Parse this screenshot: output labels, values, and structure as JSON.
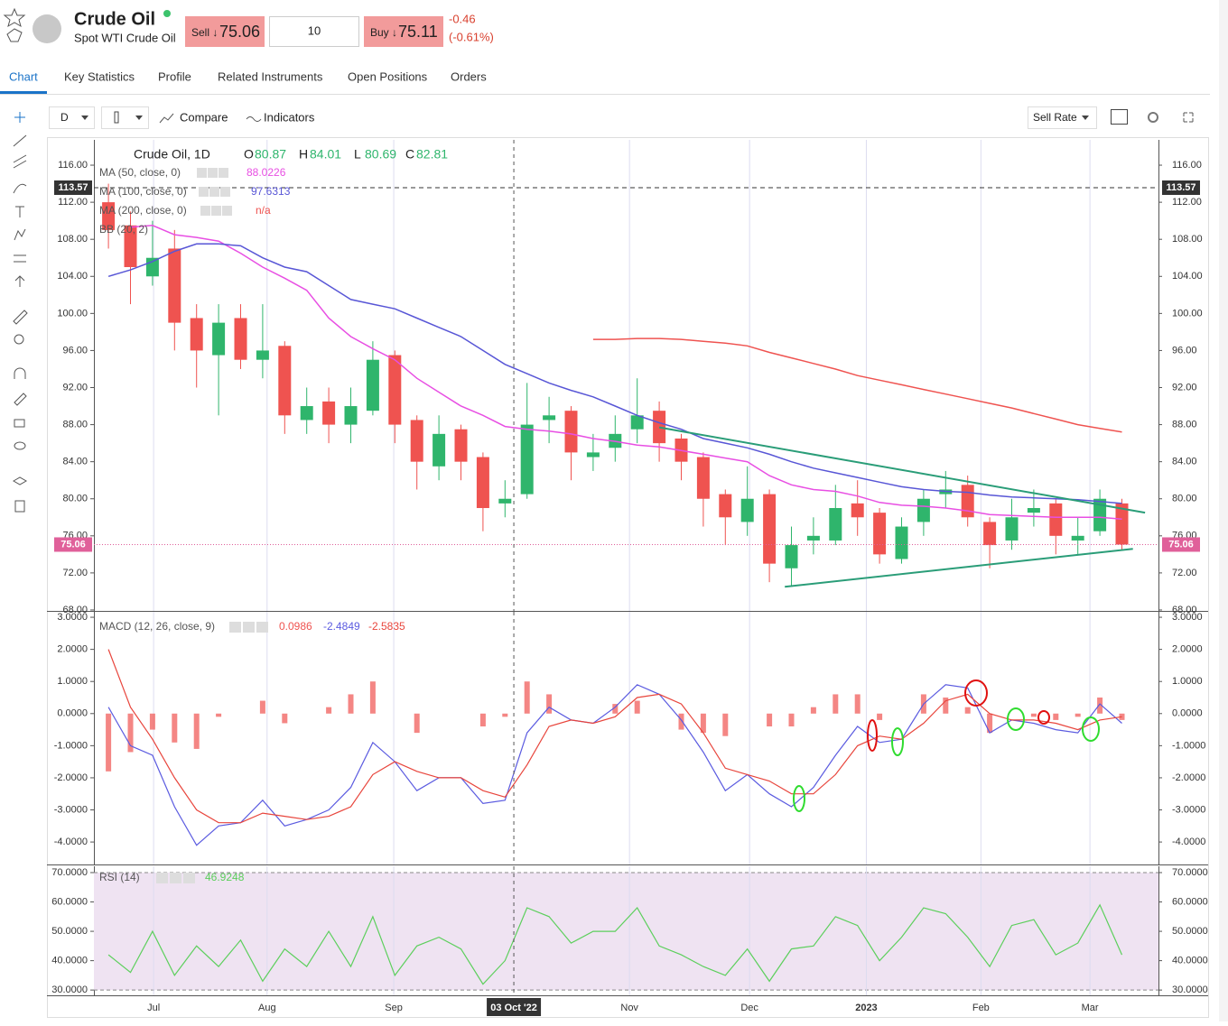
{
  "header": {
    "title": "Crude Oil",
    "subtitle": "Spot WTI Crude Oil",
    "sell_label": "Sell ↓",
    "sell_price": 75.06,
    "quantity": 10,
    "buy_label": "Buy ↓",
    "buy_price": 75.11,
    "change": -0.46,
    "change_pct": "(-0.61%)"
  },
  "tabs": [
    "Chart",
    "Key Statistics",
    "Profile",
    "Related Instruments",
    "Open Positions",
    "Orders"
  ],
  "toolbar": {
    "interval": "D",
    "compare": "Compare",
    "indicators": "Indicators",
    "rate": "Sell Rate"
  },
  "chart_data": [
    {
      "type": "candlestick",
      "title": "Crude Oil, 1D",
      "ohlc_labels": [
        "O",
        "H",
        "L",
        "C"
      ],
      "ohlc": [
        80.87,
        84.01,
        80.69,
        82.81
      ],
      "up_color": "#2fb56c",
      "down_color": "#ef5350",
      "open": [
        112,
        109.5,
        104,
        107,
        99.5,
        95.5,
        99.5,
        95,
        96.5,
        88.5,
        90.5,
        88,
        89.5,
        95.5,
        88.5,
        83.5,
        87.5,
        84.5,
        79.5,
        80.5,
        88.5,
        89.5,
        84.5,
        85.5,
        87.5,
        89.5,
        86.5,
        84.5,
        80.5,
        77.5,
        80.5,
        72.5,
        75.5,
        75.5,
        79.5,
        78.5,
        73.5,
        77.5,
        80.5,
        81.5,
        77.5,
        75.5,
        78.5,
        79.5,
        75.5,
        76.5,
        79.5
      ],
      "high": [
        114,
        111,
        110,
        109,
        101,
        101,
        101,
        101,
        97,
        92,
        92,
        92,
        97,
        96,
        89,
        89,
        88,
        85,
        82,
        92.5,
        91,
        90,
        87,
        89,
        93,
        90.5,
        87,
        85,
        81,
        83.5,
        81,
        77,
        78,
        81.5,
        82,
        79,
        78,
        81,
        83,
        82.5,
        78,
        80,
        81,
        80,
        78,
        81,
        80
      ],
      "low": [
        107,
        101,
        103,
        96,
        92,
        89,
        94,
        93,
        87,
        87,
        86,
        86,
        89,
        86,
        81,
        82,
        82,
        76.5,
        78,
        80,
        86,
        82,
        83,
        84,
        86,
        84,
        82,
        77,
        75,
        76,
        71,
        70.5,
        74,
        75,
        76,
        73,
        73,
        76,
        79,
        77,
        72.5,
        74.5,
        77,
        74,
        74,
        76,
        74.5
      ],
      "close": [
        109,
        105,
        106,
        99,
        96,
        99,
        95,
        96,
        89,
        90,
        88,
        90,
        95,
        88,
        84,
        87,
        84,
        79,
        80,
        88,
        89,
        85,
        85,
        87,
        89,
        86,
        84,
        80,
        78,
        80,
        73,
        75,
        76,
        79,
        78,
        74,
        77,
        80,
        81,
        78,
        75,
        78,
        79,
        76,
        76,
        80,
        75.06
      ],
      "series": [
        {
          "name": "MA (50, close, 0)",
          "value": 88.0226,
          "color": "#e84fe3",
          "values": [
            null,
            109.3,
            109.5,
            108.5,
            108.2,
            107.8,
            106.5,
            105,
            103.8,
            102.5,
            99.5,
            97.5,
            96.2,
            95,
            93,
            91.5,
            90,
            89,
            87.8,
            87.5,
            87.3,
            87,
            86.5,
            86.2,
            85.8,
            85.6,
            85.2,
            84.8,
            84.4,
            84,
            82.5,
            81.5,
            81,
            80.8,
            80.3,
            79.6,
            79.3,
            79.2,
            79,
            78.7,
            78.3,
            78.2,
            78.1,
            78,
            78,
            78,
            77.8
          ]
        },
        {
          "name": "MA (100, close, 0)",
          "value": 97.6313,
          "color": "#5856d6",
          "values": [
            104,
            104.7,
            105.6,
            106.7,
            107.5,
            107.5,
            107.3,
            106,
            105,
            104.5,
            103,
            101.5,
            101,
            100.5,
            99.5,
            98.5,
            97.5,
            96,
            94.5,
            93.5,
            92.5,
            91.7,
            91,
            90,
            89,
            88.2,
            87.5,
            86.5,
            86,
            85.5,
            84.8,
            84,
            83.3,
            82.8,
            82.3,
            81.8,
            81.3,
            81,
            80.8,
            80.7,
            80.4,
            80.2,
            80.1,
            80,
            79.9,
            79.7,
            79.5
          ]
        },
        {
          "name": "MA (200, close, 0)",
          "value": "n/a",
          "color": "#ef5350",
          "values": [
            null,
            null,
            null,
            null,
            null,
            null,
            null,
            null,
            null,
            null,
            null,
            null,
            null,
            null,
            null,
            null,
            null,
            null,
            null,
            null,
            null,
            null,
            97.2,
            97.2,
            97.3,
            97.3,
            97.2,
            97,
            96.8,
            96.5,
            95.8,
            95.2,
            94.6,
            94,
            93.3,
            92.8,
            92.3,
            91.8,
            91.3,
            90.8,
            90.3,
            89.8,
            89.2,
            88.6,
            88,
            87.6,
            87.2
          ]
        }
      ],
      "other_studies": [
        "BB (20, 2)"
      ],
      "trendlines": [
        {
          "color": "#2a9d78",
          "x": [
            25,
            47.05
          ],
          "y": [
            87.7,
            78.5
          ]
        },
        {
          "color": "#2a9d78",
          "x": [
            30.7,
            46.5
          ],
          "y": [
            70.5,
            74.6
          ]
        }
      ],
      "price_lines": [
        {
          "value": 113.57,
          "color": "#333333"
        },
        {
          "value": 75.06,
          "color": "#e0609a"
        }
      ],
      "xlim": [
        -0.66,
        47.66
      ],
      "ylim": [
        67.9,
        118.73
      ],
      "yticks": [
        {
          "value": 68,
          "label": "68.00"
        },
        {
          "value": 72,
          "label": "72.00"
        },
        {
          "value": 76,
          "label": "76.00"
        },
        {
          "value": 80,
          "label": "80.00"
        },
        {
          "value": 84,
          "label": "84.00"
        },
        {
          "value": 88,
          "label": "88.00"
        },
        {
          "value": 92,
          "label": "92.00"
        },
        {
          "value": 96,
          "label": "96.00"
        },
        {
          "value": 100,
          "label": "100.00"
        },
        {
          "value": 104,
          "label": "104.00"
        },
        {
          "value": 108,
          "label": "108.00"
        },
        {
          "value": 112,
          "label": "112.00"
        },
        {
          "value": 116,
          "label": "116.00"
        }
      ]
    },
    {
      "type": "macd",
      "title": "MACD (12, 26, close, 9)",
      "xlim": [
        -0.66,
        47.66
      ],
      "ylim": [
        -4.7,
        3.17
      ],
      "yticks": [
        {
          "value": 3,
          "label": "3.0000"
        },
        {
          "value": 2,
          "label": "2.0000"
        },
        {
          "value": 1,
          "label": "1.0000"
        },
        {
          "value": 0,
          "label": "0.0000"
        },
        {
          "value": -1,
          "label": "-1.0000"
        },
        {
          "value": -2,
          "label": "-2.0000"
        },
        {
          "value": -3,
          "label": "-3.0000"
        },
        {
          "value": -4,
          "label": "-4.0000"
        }
      ],
      "histogram": {
        "value": 0.0986,
        "color": "#ef5350",
        "values": [
          -1.8,
          -1.2,
          -0.5,
          -0.9,
          -1.1,
          -0.1,
          0,
          0.4,
          -0.3,
          0,
          0.2,
          0.6,
          1.0,
          0,
          -0.6,
          0,
          0,
          -0.4,
          -0.1,
          1.0,
          0.6,
          0,
          0,
          0.3,
          0.4,
          0,
          -0.5,
          -0.6,
          -0.7,
          0,
          -0.4,
          -0.4,
          0.2,
          0.6,
          0.6,
          -0.2,
          0,
          0.6,
          0.5,
          0.2,
          -0.6,
          0,
          -0.1,
          -0.2,
          -0.1,
          0.5,
          -0.2
        ]
      },
      "series": [
        {
          "value": -2.4849,
          "color": "#5b5be0",
          "values": [
            0.2,
            -1.0,
            -1.3,
            -2.9,
            -4.1,
            -3.5,
            -3.4,
            -2.7,
            -3.5,
            -3.3,
            -3.0,
            -2.3,
            -0.9,
            -1.5,
            -2.4,
            -2.0,
            -2.0,
            -2.8,
            -2.7,
            -0.6,
            0.2,
            -0.2,
            -0.3,
            0.2,
            0.9,
            0.6,
            -0.2,
            -1.2,
            -2.4,
            -1.9,
            -2.5,
            -2.9,
            -2.3,
            -1.3,
            -0.4,
            -0.9,
            -0.8,
            0.3,
            0.9,
            0.8,
            -0.6,
            -0.2,
            -0.3,
            -0.5,
            -0.6,
            0.3,
            -0.3
          ]
        },
        {
          "value": -2.5835,
          "color": "#e8453c",
          "values": [
            2.0,
            0.2,
            -0.8,
            -2.0,
            -3.0,
            -3.4,
            -3.4,
            -3.1,
            -3.2,
            -3.3,
            -3.2,
            -2.9,
            -1.9,
            -1.5,
            -1.8,
            -2.0,
            -2.0,
            -2.4,
            -2.6,
            -1.6,
            -0.4,
            -0.2,
            -0.3,
            -0.1,
            0.5,
            0.6,
            0.3,
            -0.6,
            -1.7,
            -1.9,
            -2.1,
            -2.5,
            -2.5,
            -1.9,
            -1.0,
            -0.7,
            -0.8,
            -0.3,
            0.4,
            0.6,
            0.0,
            -0.2,
            -0.2,
            -0.3,
            -0.5,
            -0.2,
            -0.1
          ]
        }
      ]
    },
    {
      "type": "rsi",
      "title": "RSI (14)",
      "value": 46.9248,
      "color": "#5ccf5c",
      "band_color": "#efe3f2",
      "band": [
        30,
        70
      ],
      "xlim": [
        -0.66,
        47.66
      ],
      "ylim": [
        28.2,
        72.15
      ],
      "yticks": [
        {
          "value": 70,
          "label": "70.0000"
        },
        {
          "value": 60,
          "label": "60.0000"
        },
        {
          "value": 50,
          "label": "50.0000"
        },
        {
          "value": 40,
          "label": "40.0000"
        },
        {
          "value": 30,
          "label": "30.0000"
        }
      ],
      "values": [
        42,
        36,
        50,
        35,
        45,
        38,
        47,
        33,
        44,
        38,
        50,
        38,
        55,
        35,
        45,
        48,
        44,
        32,
        40,
        58,
        55,
        46,
        50,
        50,
        58,
        45,
        42,
        38,
        35,
        44,
        33,
        44,
        45,
        55,
        52,
        40,
        48,
        58,
        56,
        48,
        38,
        52,
        54,
        42,
        46,
        59,
        42
      ],
      "xticks": [
        {
          "value": 2.05,
          "label": "Jul"
        },
        {
          "value": 7.2,
          "label": "Aug"
        },
        {
          "value": 12.95,
          "label": "Sep"
        },
        {
          "value": 23.65,
          "label": "Nov"
        },
        {
          "value": 29.1,
          "label": "Dec"
        },
        {
          "value": 34.4,
          "label": "2023"
        },
        {
          "value": 39.6,
          "label": "Feb"
        },
        {
          "value": 44.55,
          "label": "Mar"
        }
      ],
      "crosshair": {
        "x": 18.4,
        "label": "03 Oct '22"
      }
    }
  ]
}
